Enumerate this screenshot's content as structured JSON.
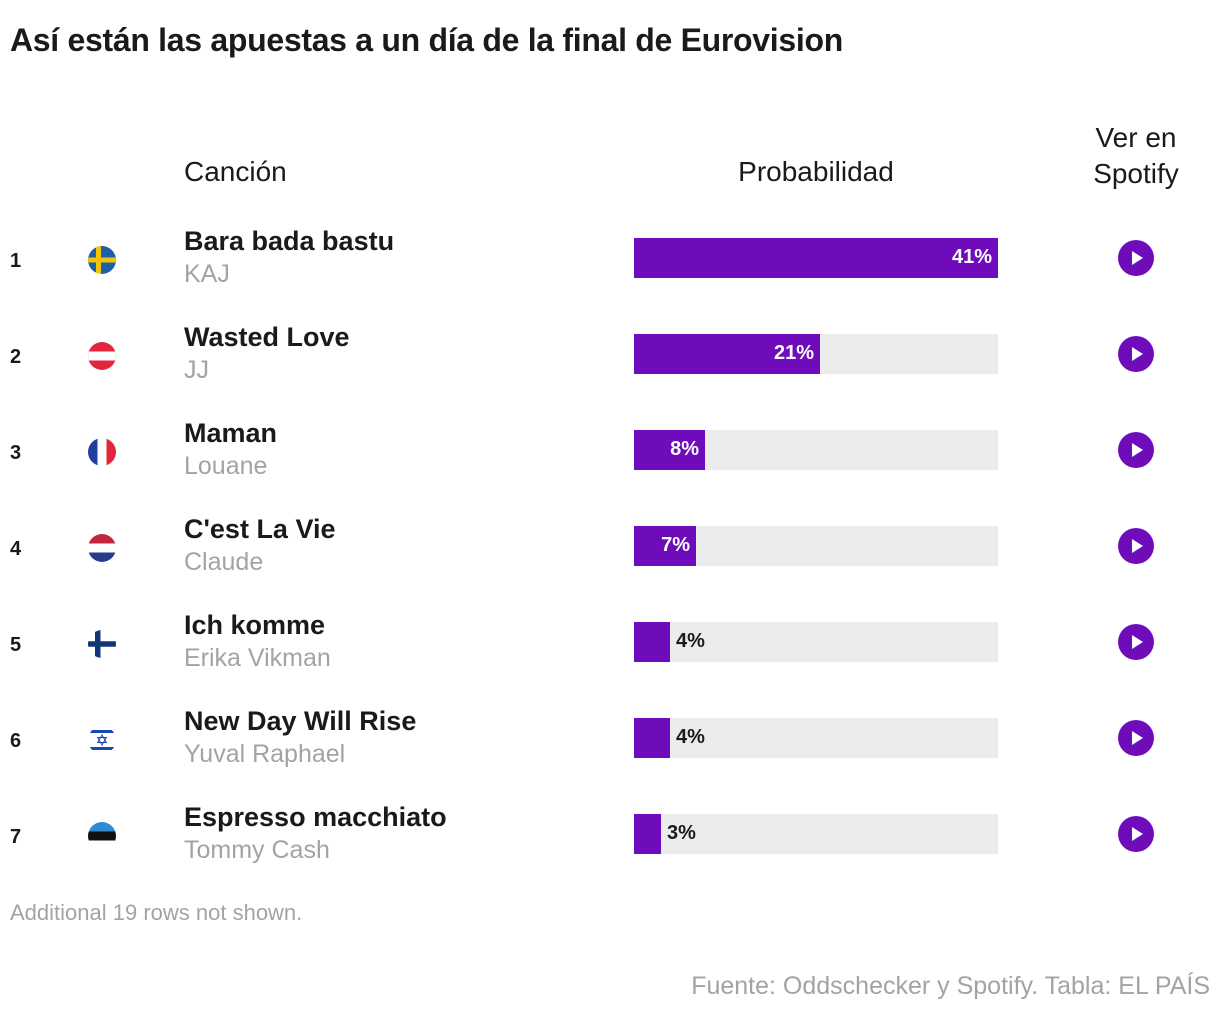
{
  "title": "Así están las apuestas a un día de la final de Eurovision",
  "headers": {
    "song": "Canción",
    "probability": "Probabilidad",
    "spotify_line1": "Ver en",
    "spotify_line2": "Spotify"
  },
  "chart_data": {
    "type": "bar",
    "x_unit": "%",
    "xlim": [
      0,
      41
    ],
    "categories": [
      "Bara bada bastu",
      "Wasted Love",
      "Maman",
      "C'est La Vie",
      "Ich komme",
      "New Day Will Rise",
      "Espresso macchiato"
    ],
    "series": [
      {
        "values": [
          41,
          21,
          8,
          7,
          4,
          4,
          3
        ]
      }
    ],
    "bar_color": "#6e0cbb",
    "track_color": "#ececec"
  },
  "rows": [
    {
      "rank": "1",
      "flag": "sweden-flag-icon",
      "song": "Bara bada bastu",
      "artist": "KAJ",
      "prob": 41,
      "label": "41%"
    },
    {
      "rank": "2",
      "flag": "austria-flag-icon",
      "song": "Wasted Love",
      "artist": "JJ",
      "prob": 21,
      "label": "21%"
    },
    {
      "rank": "3",
      "flag": "france-flag-icon",
      "song": "Maman",
      "artist": "Louane",
      "prob": 8,
      "label": "8%"
    },
    {
      "rank": "4",
      "flag": "netherlands-flag-icon",
      "song": "C'est La Vie",
      "artist": "Claude",
      "prob": 7,
      "label": "7%"
    },
    {
      "rank": "5",
      "flag": "finland-flag-icon",
      "song": "Ich komme",
      "artist": "Erika Vikman",
      "prob": 4,
      "label": "4%"
    },
    {
      "rank": "6",
      "flag": "israel-flag-icon",
      "song": "New Day Will Rise",
      "artist": "Yuval Raphael",
      "prob": 4,
      "label": "4%"
    },
    {
      "rank": "7",
      "flag": "estonia-flag-icon",
      "song": "Espresso macchiato",
      "artist": "Tommy Cash",
      "prob": 3,
      "label": "3%"
    }
  ],
  "play_icon": "play-icon",
  "note": "Additional 19 rows not shown.",
  "source": "Fuente: Oddschecker y Spotify. Tabla: EL PAÍS"
}
